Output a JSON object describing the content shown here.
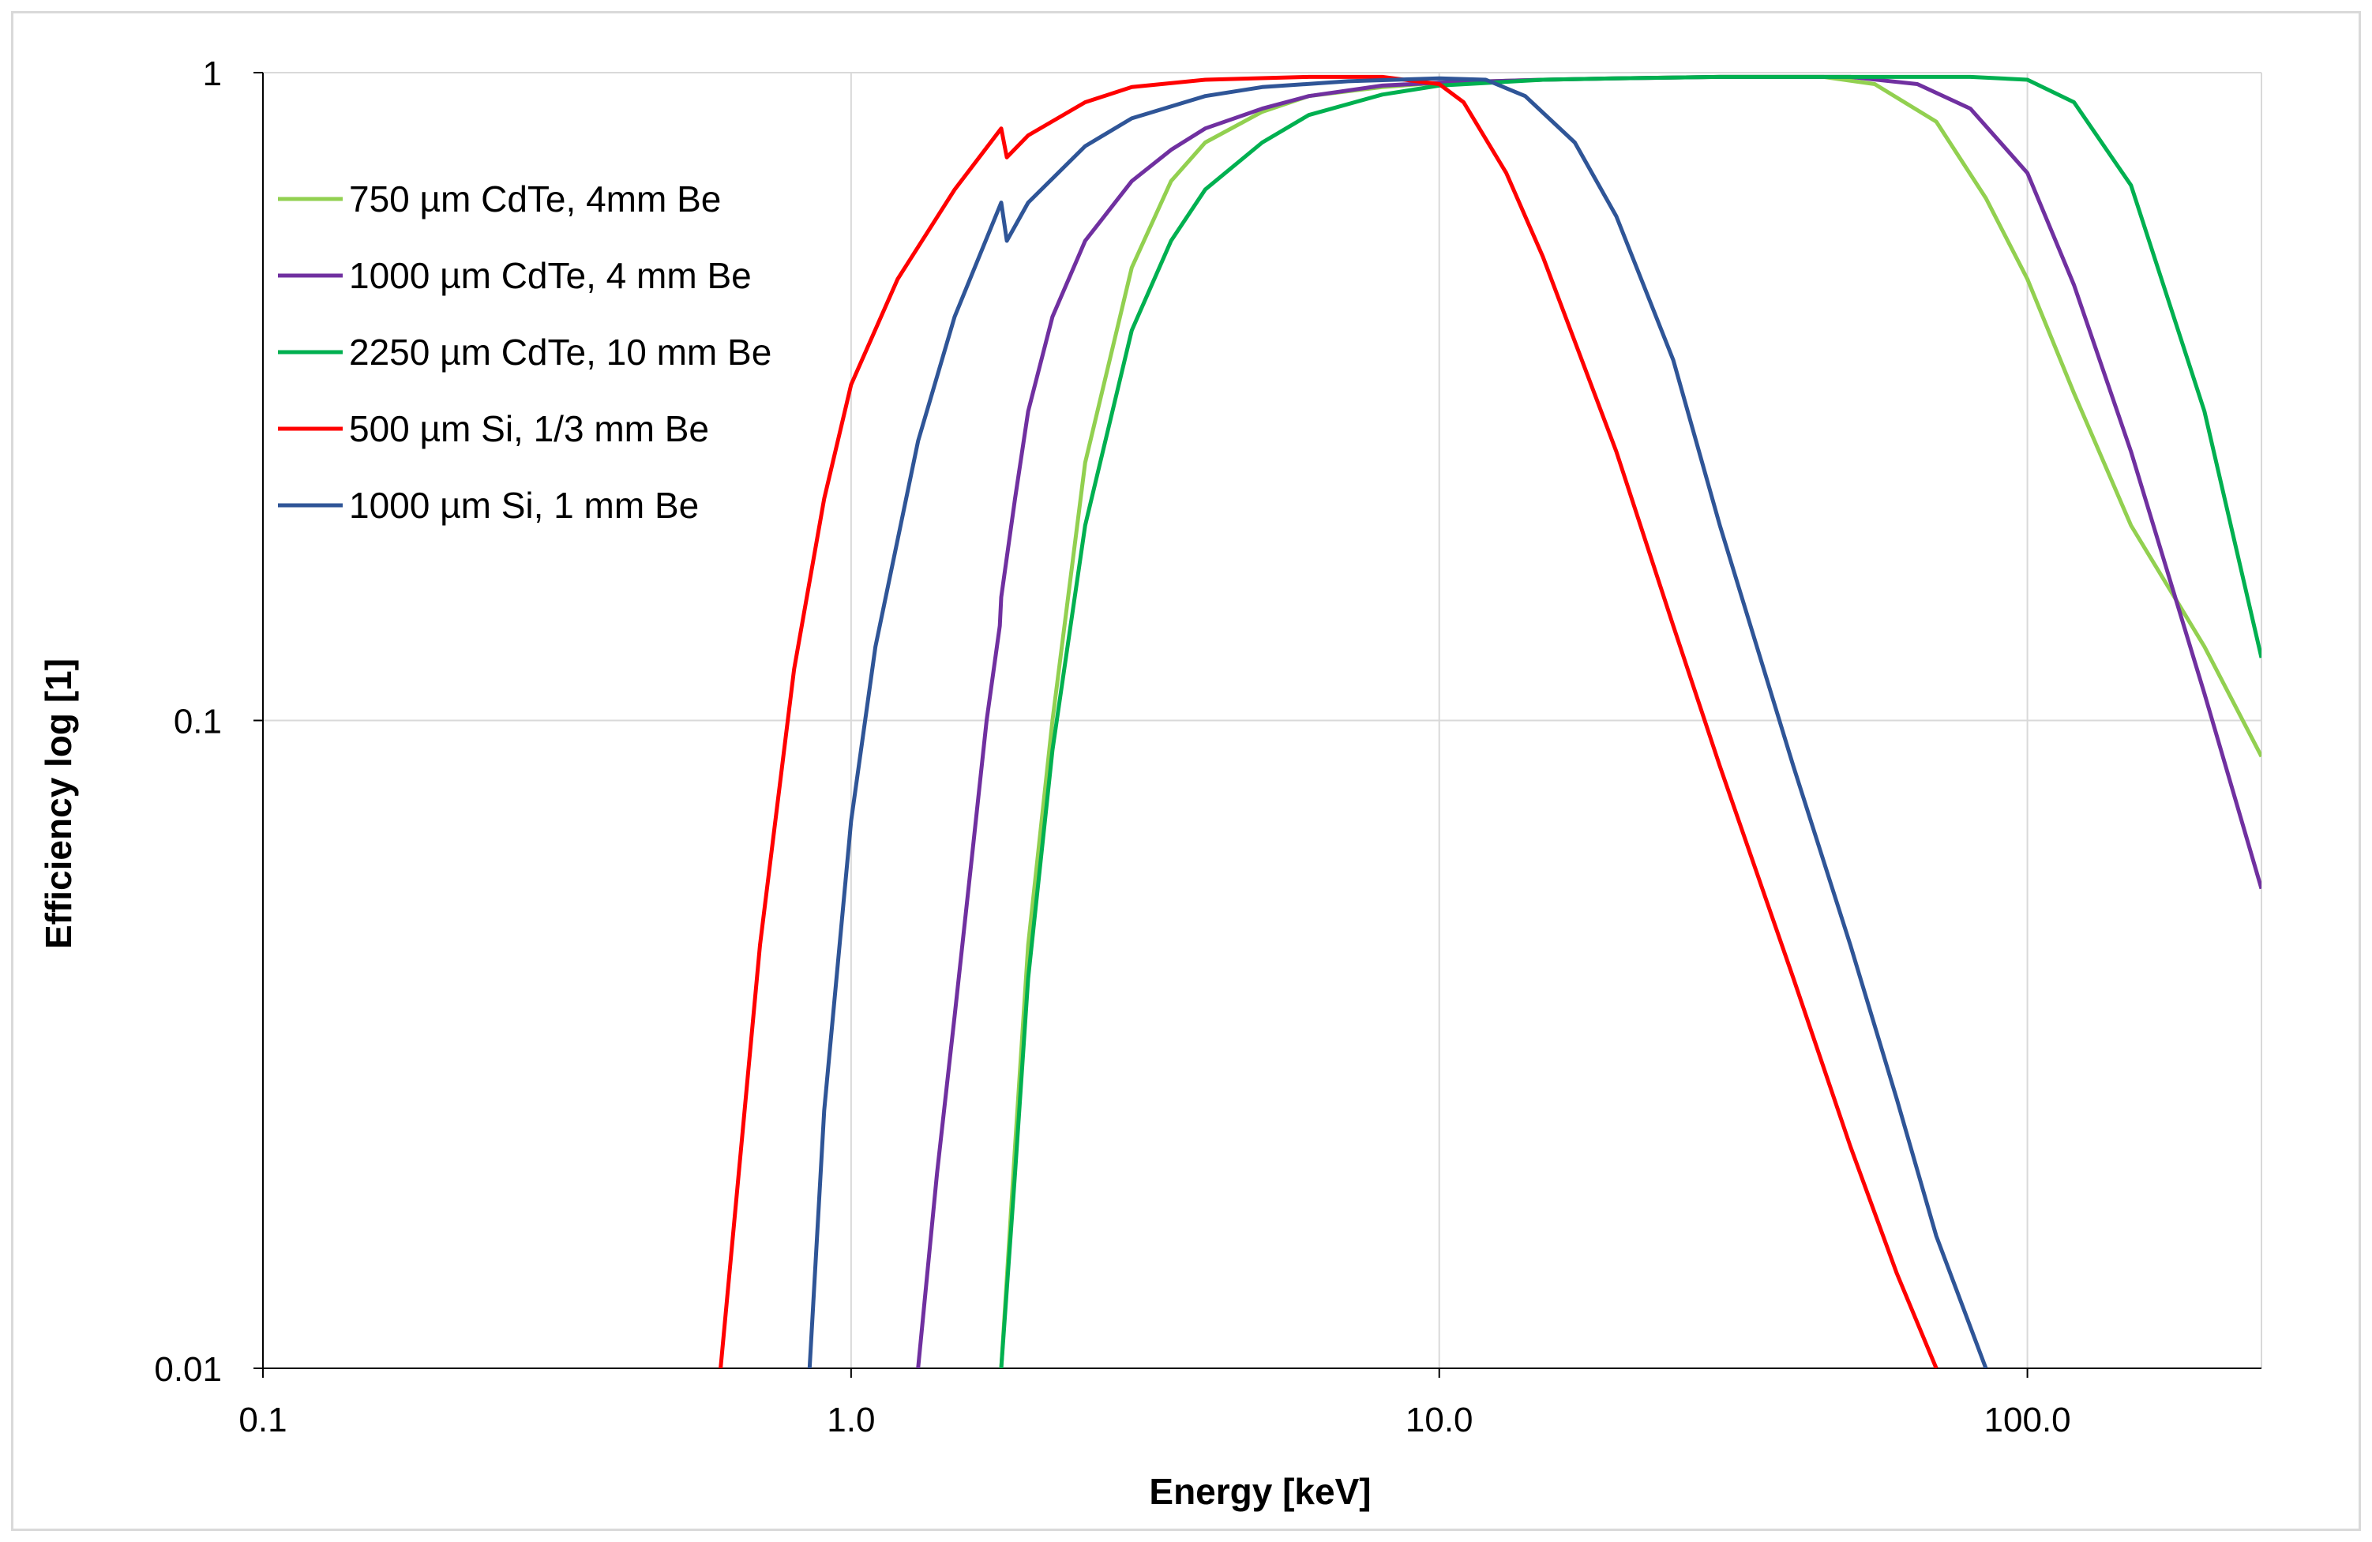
{
  "chart_data": {
    "type": "line",
    "title": "",
    "xlabel": "Energy [keV]",
    "ylabel": "Efficiency log [1]",
    "xscale": "log",
    "yscale": "log",
    "xlim": [
      0.1,
      250
    ],
    "ylim": [
      0.01,
      1
    ],
    "x_ticks": [
      {
        "value": 0.1,
        "label": "0.1"
      },
      {
        "value": 1,
        "label": "1.0"
      },
      {
        "value": 10,
        "label": "10.0"
      },
      {
        "value": 100,
        "label": "100.0"
      }
    ],
    "y_ticks": [
      {
        "value": 0.01,
        "label": "0.01"
      },
      {
        "value": 0.1,
        "label": "0.1"
      },
      {
        "value": 1,
        "label": "1"
      }
    ],
    "grid": true,
    "legend_position": "top-left",
    "series": [
      {
        "name": "750 µm CdTe, 4mm Be",
        "color": "#92d050",
        "points": [
          [
            1.8,
            0.01
          ],
          [
            1.9,
            0.022
          ],
          [
            2.0,
            0.045
          ],
          [
            2.2,
            0.1
          ],
          [
            2.5,
            0.25
          ],
          [
            3.0,
            0.5
          ],
          [
            3.5,
            0.68
          ],
          [
            4.0,
            0.78
          ],
          [
            5.0,
            0.87
          ],
          [
            6.0,
            0.92
          ],
          [
            8.0,
            0.95
          ],
          [
            10.0,
            0.965
          ],
          [
            15.0,
            0.975
          ],
          [
            20.0,
            0.98
          ],
          [
            30.0,
            0.985
          ],
          [
            45.0,
            0.985
          ],
          [
            55.0,
            0.96
          ],
          [
            70.0,
            0.84
          ],
          [
            85.0,
            0.64
          ],
          [
            100.0,
            0.48
          ],
          [
            120.0,
            0.32
          ],
          [
            150.0,
            0.2
          ],
          [
            200.0,
            0.13
          ],
          [
            250.0,
            0.088
          ]
        ]
      },
      {
        "name": "1000 µm CdTe, 4 mm Be",
        "color": "#7030a0",
        "points": [
          [
            1.3,
            0.01
          ],
          [
            1.4,
            0.02
          ],
          [
            1.5,
            0.035
          ],
          [
            1.6,
            0.06
          ],
          [
            1.7,
            0.1
          ],
          [
            1.79,
            0.14
          ],
          [
            1.8,
            0.155
          ],
          [
            1.9,
            0.22
          ],
          [
            2.0,
            0.3
          ],
          [
            2.2,
            0.42
          ],
          [
            2.5,
            0.55
          ],
          [
            3.0,
            0.68
          ],
          [
            3.5,
            0.76
          ],
          [
            4.0,
            0.82
          ],
          [
            5.0,
            0.88
          ],
          [
            6.0,
            0.92
          ],
          [
            8.0,
            0.955
          ],
          [
            10.0,
            0.965
          ],
          [
            15.0,
            0.975
          ],
          [
            20.0,
            0.98
          ],
          [
            30.0,
            0.985
          ],
          [
            50.0,
            0.985
          ],
          [
            65.0,
            0.96
          ],
          [
            80.0,
            0.88
          ],
          [
            100.0,
            0.7
          ],
          [
            120.0,
            0.47
          ],
          [
            150.0,
            0.26
          ],
          [
            200.0,
            0.11
          ],
          [
            250.0,
            0.055
          ]
        ]
      },
      {
        "name": "2250 µm CdTe, 10 mm Be",
        "color": "#00b050",
        "points": [
          [
            1.8,
            0.01
          ],
          [
            1.9,
            0.02
          ],
          [
            2.0,
            0.04
          ],
          [
            2.2,
            0.09
          ],
          [
            2.5,
            0.2
          ],
          [
            3.0,
            0.4
          ],
          [
            3.5,
            0.55
          ],
          [
            4.0,
            0.66
          ],
          [
            5.0,
            0.78
          ],
          [
            6.0,
            0.86
          ],
          [
            8.0,
            0.925
          ],
          [
            10.0,
            0.955
          ],
          [
            15.0,
            0.975
          ],
          [
            20.0,
            0.98
          ],
          [
            30.0,
            0.985
          ],
          [
            60.0,
            0.985
          ],
          [
            80.0,
            0.985
          ],
          [
            100.0,
            0.975
          ],
          [
            120.0,
            0.9
          ],
          [
            150.0,
            0.67
          ],
          [
            200.0,
            0.3
          ],
          [
            250.0,
            0.125
          ]
        ]
      },
      {
        "name": "500 µm Si, 1/3 mm Be",
        "color": "#ff0000",
        "points": [
          [
            0.6,
            0.01
          ],
          [
            0.7,
            0.045
          ],
          [
            0.8,
            0.12
          ],
          [
            0.9,
            0.22
          ],
          [
            1.0,
            0.33
          ],
          [
            1.2,
            0.48
          ],
          [
            1.5,
            0.66
          ],
          [
            1.8,
            0.82
          ],
          [
            1.84,
            0.74
          ],
          [
            2.0,
            0.8
          ],
          [
            2.5,
            0.9
          ],
          [
            3.0,
            0.95
          ],
          [
            4.0,
            0.975
          ],
          [
            6.0,
            0.985
          ],
          [
            8.0,
            0.985
          ],
          [
            10.0,
            0.96
          ],
          [
            11.0,
            0.9
          ],
          [
            13.0,
            0.7
          ],
          [
            15.0,
            0.52
          ],
          [
            20.0,
            0.26
          ],
          [
            25.0,
            0.14
          ],
          [
            30.0,
            0.085
          ],
          [
            40.0,
            0.04
          ],
          [
            50.0,
            0.022
          ],
          [
            60.0,
            0.014
          ],
          [
            70.0,
            0.01
          ]
        ]
      },
      {
        "name": "1000 µm Si, 1 mm Be",
        "color": "#2f5597",
        "points": [
          [
            0.85,
            0.01
          ],
          [
            0.9,
            0.025
          ],
          [
            1.0,
            0.07
          ],
          [
            1.1,
            0.13
          ],
          [
            1.3,
            0.27
          ],
          [
            1.5,
            0.42
          ],
          [
            1.8,
            0.63
          ],
          [
            1.84,
            0.55
          ],
          [
            2.0,
            0.63
          ],
          [
            2.5,
            0.77
          ],
          [
            3.0,
            0.85
          ],
          [
            4.0,
            0.92
          ],
          [
            5.0,
            0.95
          ],
          [
            7.0,
            0.97
          ],
          [
            10.0,
            0.98
          ],
          [
            12.0,
            0.975
          ],
          [
            14.0,
            0.92
          ],
          [
            17.0,
            0.78
          ],
          [
            20.0,
            0.6
          ],
          [
            25.0,
            0.36
          ],
          [
            30.0,
            0.2
          ],
          [
            40.0,
            0.085
          ],
          [
            50.0,
            0.045
          ],
          [
            60.0,
            0.026
          ],
          [
            70.0,
            0.016
          ],
          [
            85.0,
            0.01
          ]
        ]
      }
    ]
  }
}
